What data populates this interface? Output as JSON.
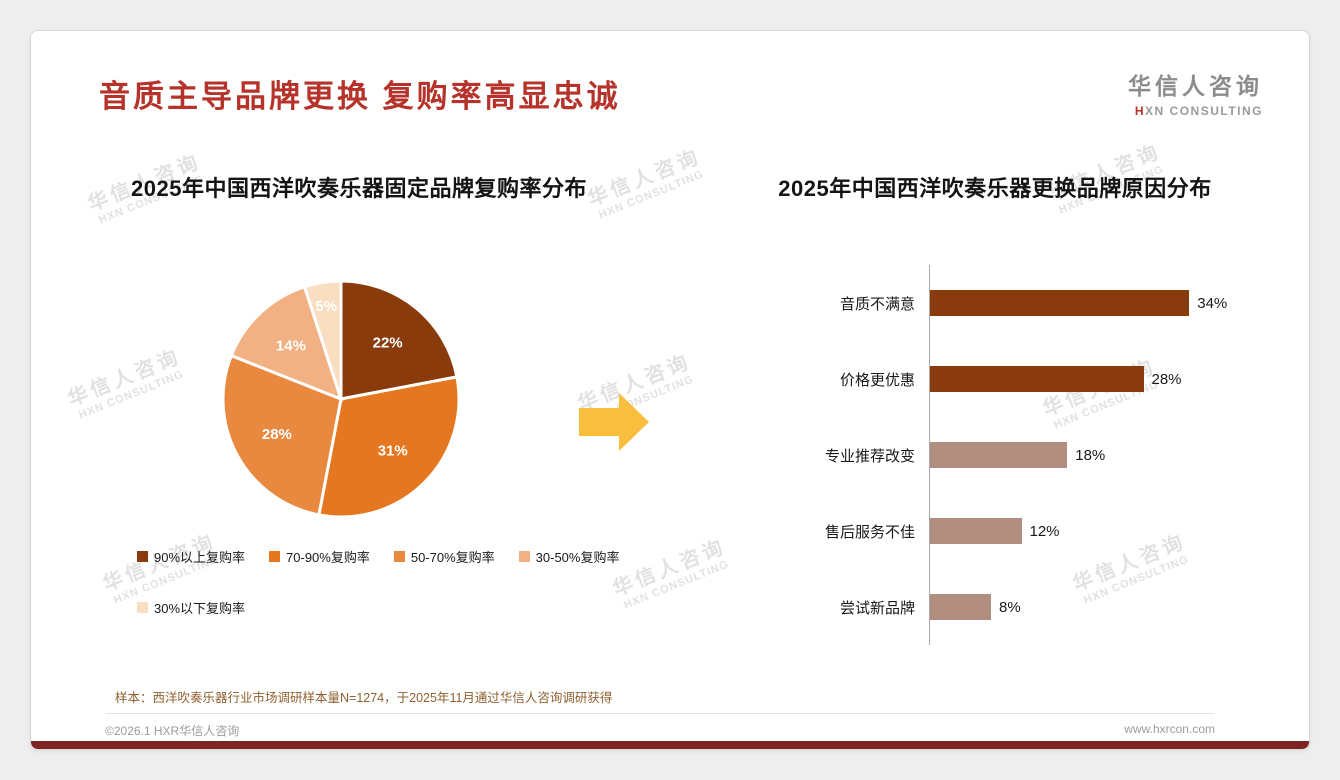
{
  "page": {
    "title": "音质主导品牌更换 复购率高显忠诚",
    "logo": {
      "cn": "华信人咨询",
      "en_first": "H",
      "en_rest": "XN CONSULTING"
    },
    "watermark": {
      "cn": "华信人咨询",
      "en": "HXN CONSULTING"
    },
    "footnote": "样本：西洋吹奏乐器行业市场调研样本量N=1274，于2025年11月通过华信人咨询调研获得",
    "copyright": "©2026.1 HXR华信人咨询",
    "website": "www.hxrcon.com",
    "colors": {
      "accent_red": "#B5332A",
      "arrow_yellow": "#F9BE3D",
      "bottom_bar": "#7E2422",
      "footnote_brown": "#8F6030"
    }
  },
  "chart_data": [
    {
      "type": "pie",
      "title": "2025年中国西洋吹奏乐器固定品牌复购率分布",
      "labels": [
        "90%以上复购率",
        "70-90%复购率",
        "50-70%复购率",
        "30-50%复购率",
        "30%以下复购率"
      ],
      "values": [
        22,
        31,
        28,
        14,
        5
      ],
      "unit": "%",
      "colors": [
        "#8A3B0B",
        "#E4771F",
        "#E98940",
        "#F2B182",
        "#F9DEC2"
      ],
      "start_angle_deg": -90,
      "direction": "clockwise",
      "legend_position": "bottom"
    },
    {
      "type": "bar",
      "orientation": "horizontal",
      "title": "2025年中国西洋吹奏乐器更换品牌原因分布",
      "categories": [
        "音质不满意",
        "价格更优惠",
        "专业推荐改变",
        "售后服务不佳",
        "尝试新品牌"
      ],
      "values": [
        34,
        28,
        18,
        12,
        8
      ],
      "value_suffix": "%",
      "colors": [
        "#8A3B0E",
        "#8A3B0E",
        "#B18D80",
        "#B18D80",
        "#B18D80"
      ],
      "xlim": [
        0,
        40
      ],
      "grid": false
    }
  ]
}
